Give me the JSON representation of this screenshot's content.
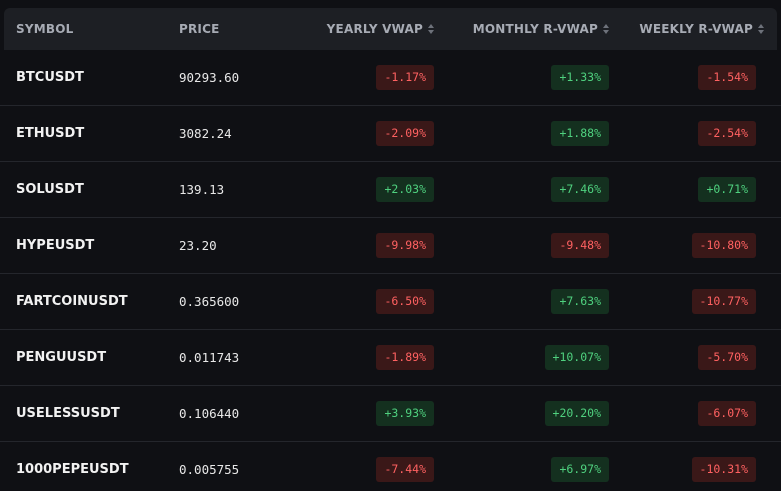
{
  "header": {
    "symbol": "SYMBOL",
    "price": "PRICE",
    "yearly": "YEARLY VWAP",
    "monthly": "MONTHLY R-VWAP",
    "weekly": "WEEKLY R-VWAP"
  },
  "colors": {
    "negative_text": "#ff6161",
    "negative_bg": "#3a1818",
    "positive_text": "#4fd17f",
    "positive_bg": "#14301f"
  },
  "rows": [
    {
      "symbol": "BTCUSDT",
      "price": "90293.60",
      "yearly": "-1.17%",
      "monthly": "+1.33%",
      "weekly": "-1.54%"
    },
    {
      "symbol": "ETHUSDT",
      "price": "3082.24",
      "yearly": "-2.09%",
      "monthly": "+1.88%",
      "weekly": "-2.54%"
    },
    {
      "symbol": "SOLUSDT",
      "price": "139.13",
      "yearly": "+2.03%",
      "monthly": "+7.46%",
      "weekly": "+0.71%"
    },
    {
      "symbol": "HYPEUSDT",
      "price": "23.20",
      "yearly": "-9.98%",
      "monthly": "-9.48%",
      "weekly": "-10.80%"
    },
    {
      "symbol": "FARTCOINUSDT",
      "price": "0.365600",
      "yearly": "-6.50%",
      "monthly": "+7.63%",
      "weekly": "-10.77%"
    },
    {
      "symbol": "PENGUUSDT",
      "price": "0.011743",
      "yearly": "-1.89%",
      "monthly": "+10.07%",
      "weekly": "-5.70%"
    },
    {
      "symbol": "USELESSUSDT",
      "price": "0.106440",
      "yearly": "+3.93%",
      "monthly": "+20.20%",
      "weekly": "-6.07%"
    },
    {
      "symbol": "1000PEPEUSDT",
      "price": "0.005755",
      "yearly": "-7.44%",
      "monthly": "+6.97%",
      "weekly": "-10.31%"
    }
  ]
}
